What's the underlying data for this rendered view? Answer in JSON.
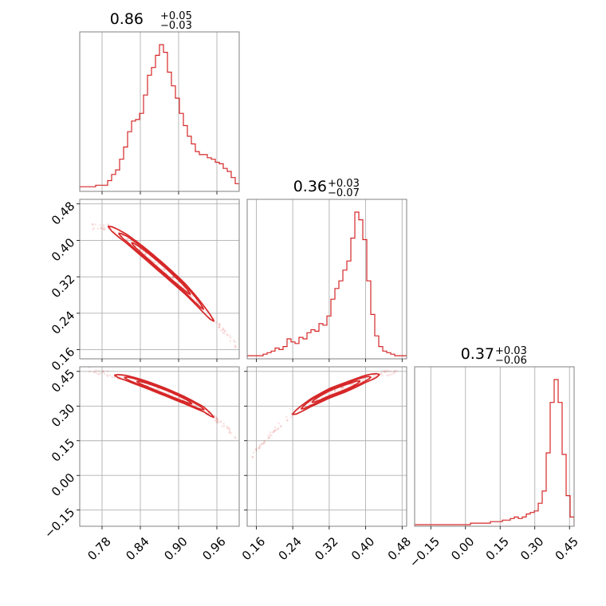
{
  "chart_data": {
    "type": "corner",
    "parameters": [
      {
        "title": {
          "median": "0.86",
          "plus": "+0.05",
          "minus": "−0.03"
        },
        "range": [
          0.745,
          0.995
        ],
        "ticks": [
          0.78,
          0.84,
          0.9,
          0.96
        ],
        "tick_labels": [
          "0.78",
          "0.84",
          "0.90",
          "0.96"
        ]
      },
      {
        "title": {
          "median": "0.36",
          "plus": "+0.03",
          "minus": "−0.07"
        },
        "range": [
          0.14,
          0.49
        ],
        "ticks": [
          0.16,
          0.24,
          0.32,
          0.4,
          0.48
        ],
        "tick_labels": [
          "0.16",
          "0.24",
          "0.32",
          "0.40",
          "0.48"
        ]
      },
      {
        "title": {
          "median": "0.37",
          "plus": "+0.03",
          "minus": "−0.06"
        },
        "range": [
          -0.22,
          0.47
        ],
        "ticks": [
          -0.15,
          0.0,
          0.15,
          0.3,
          0.45
        ],
        "tick_labels": [
          "−0.15",
          "0.00",
          "0.15",
          "0.30",
          "0.45"
        ]
      }
    ],
    "histograms": [
      {
        "param": 0,
        "bin_start": 0.745,
        "bin_width": 0.00625,
        "counts": [
          0.02,
          0.02,
          0.02,
          0.02,
          0.03,
          0.03,
          0.03,
          0.06,
          0.1,
          0.13,
          0.2,
          0.28,
          0.38,
          0.45,
          0.46,
          0.5,
          0.62,
          0.75,
          0.8,
          0.88,
          0.95,
          0.9,
          0.77,
          0.68,
          0.6,
          0.5,
          0.42,
          0.35,
          0.3,
          0.25,
          0.23,
          0.23,
          0.21,
          0.2,
          0.18,
          0.17,
          0.14,
          0.12,
          0.08,
          0.04
        ]
      },
      {
        "param": 1,
        "bin_start": 0.14,
        "bin_width": 0.00875,
        "counts": [
          0.01,
          0.01,
          0.01,
          0.01,
          0.02,
          0.03,
          0.04,
          0.06,
          0.05,
          0.07,
          0.12,
          0.1,
          0.09,
          0.13,
          0.12,
          0.16,
          0.18,
          0.17,
          0.22,
          0.21,
          0.27,
          0.38,
          0.45,
          0.5,
          0.57,
          0.63,
          0.78,
          0.95,
          0.9,
          0.77,
          0.5,
          0.28,
          0.14,
          0.07,
          0.04,
          0.03,
          0.02,
          0.01,
          0.01,
          0.01
        ]
      },
      {
        "param": 2,
        "bin_start": -0.22,
        "bin_width": 0.01725,
        "counts": [
          0.0,
          0.0,
          0.0,
          0.0,
          0.0,
          0.0,
          0.0,
          0.0,
          0.0,
          0.0,
          0.0,
          0.0,
          0.0,
          0.0,
          0.01,
          0.01,
          0.01,
          0.01,
          0.01,
          0.02,
          0.02,
          0.02,
          0.03,
          0.03,
          0.04,
          0.05,
          0.04,
          0.05,
          0.07,
          0.08,
          0.09,
          0.14,
          0.22,
          0.47,
          0.8,
          0.95,
          0.8,
          0.46,
          0.19,
          0.05
        ]
      }
    ],
    "joint": [
      {
        "x_param": 0,
        "y_param": 1,
        "ridge": [
          [
            0.79,
            0.43
          ],
          [
            0.82,
            0.402
          ],
          [
            0.85,
            0.368
          ],
          [
            0.88,
            0.332
          ],
          [
            0.91,
            0.294
          ],
          [
            0.93,
            0.264
          ],
          [
            0.95,
            0.231
          ],
          [
            0.975,
            0.195
          ],
          [
            0.99,
            0.168
          ]
        ],
        "contour_x_range": [
          0.79,
          0.955
        ],
        "levels": [
          {
            "scale": 1.0,
            "width_y": 0.012
          },
          {
            "scale": 0.8,
            "width_y": 0.009
          },
          {
            "scale": 0.55,
            "width_y": 0.006
          }
        ],
        "scatter_x_range": [
          0.765,
          0.99
        ]
      },
      {
        "x_param": 0,
        "y_param": 2,
        "ridge": [
          [
            0.755,
            0.462
          ],
          [
            0.79,
            0.44
          ],
          [
            0.82,
            0.42
          ],
          [
            0.85,
            0.392
          ],
          [
            0.88,
            0.36
          ],
          [
            0.91,
            0.325
          ],
          [
            0.94,
            0.285
          ],
          [
            0.965,
            0.23
          ],
          [
            0.99,
            0.17
          ]
        ],
        "contour_x_range": [
          0.8,
          0.955
        ],
        "levels": [
          {
            "scale": 1.0,
            "width_y": 0.016
          },
          {
            "scale": 0.8,
            "width_y": 0.012
          },
          {
            "scale": 0.55,
            "width_y": 0.008
          }
        ],
        "scatter_x_range": [
          0.76,
          0.99
        ]
      },
      {
        "x_param": 1,
        "y_param": 2,
        "ridge": [
          [
            0.15,
            0.08
          ],
          [
            0.18,
            0.155
          ],
          [
            0.21,
            0.215
          ],
          [
            0.24,
            0.265
          ],
          [
            0.28,
            0.315
          ],
          [
            0.32,
            0.355
          ],
          [
            0.36,
            0.385
          ],
          [
            0.4,
            0.418
          ],
          [
            0.44,
            0.442
          ],
          [
            0.47,
            0.452
          ]
        ],
        "contour_x_range": [
          0.24,
          0.43
        ],
        "levels": [
          {
            "scale": 1.0,
            "width_y": 0.02
          },
          {
            "scale": 0.8,
            "width_y": 0.015
          },
          {
            "scale": 0.55,
            "width_y": 0.01
          }
        ],
        "scatter_x_range": [
          0.15,
          0.47
        ]
      }
    ],
    "colors": {
      "series": "#d62728",
      "frame": "#808080",
      "grid": "#b0b0b0"
    },
    "grid": true
  }
}
